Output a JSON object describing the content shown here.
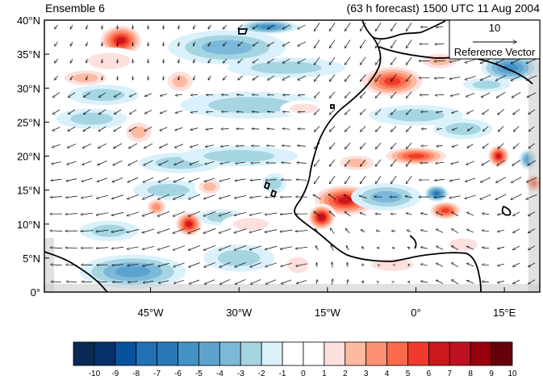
{
  "header": {
    "left_title": "Ensemble 6",
    "right_title": "(63 h forecast) 1500 UTC 11 Aug 2004"
  },
  "map": {
    "lon_range": [
      -63,
      21
    ],
    "lat_range": [
      0,
      40
    ],
    "lat_ticks": [
      {
        "value": 0,
        "label": "0°"
      },
      {
        "value": 5,
        "label": "5°N"
      },
      {
        "value": 10,
        "label": "10°N"
      },
      {
        "value": 15,
        "label": "15°N"
      },
      {
        "value": 20,
        "label": "20°N"
      },
      {
        "value": 25,
        "label": "25°N"
      },
      {
        "value": 30,
        "label": "30°N"
      },
      {
        "value": 35,
        "label": "35°N"
      },
      {
        "value": 40,
        "label": "40°N"
      }
    ],
    "lon_ticks": [
      {
        "value": -45,
        "label": "45°W"
      },
      {
        "value": -30,
        "label": "30°W"
      },
      {
        "value": -15,
        "label": "15°W"
      },
      {
        "value": 0,
        "label": "0°"
      },
      {
        "value": 15,
        "label": "15°E"
      }
    ],
    "anomaly_blobs": [
      {
        "lon": -50,
        "lat": 37,
        "rx": 4,
        "ry": 2.5,
        "level": 7
      },
      {
        "lon": -52,
        "lat": 34,
        "rx": 6,
        "ry": 2,
        "level": 2
      },
      {
        "lon": -56,
        "lat": 31.5,
        "rx": 5,
        "ry": 1.5,
        "level": 3
      },
      {
        "lon": -40,
        "lat": 31,
        "rx": 3,
        "ry": 2,
        "level": 3
      },
      {
        "lon": -32,
        "lat": 36,
        "rx": 10,
        "ry": 2.5,
        "level": -3
      },
      {
        "lon": -25,
        "lat": 39,
        "rx": 5,
        "ry": 1,
        "level": -5
      },
      {
        "lon": -22,
        "lat": 33,
        "rx": 10,
        "ry": 1.5,
        "level": -2
      },
      {
        "lon": -28,
        "lat": 27.5,
        "rx": 12,
        "ry": 2,
        "level": -2
      },
      {
        "lon": -53,
        "lat": 29,
        "rx": 6,
        "ry": 1.5,
        "level": -2
      },
      {
        "lon": -55,
        "lat": 25.5,
        "rx": 6,
        "ry": 1.5,
        "level": -2
      },
      {
        "lon": -47,
        "lat": 23.5,
        "rx": 3,
        "ry": 2,
        "level": 3
      },
      {
        "lon": -40,
        "lat": 19,
        "rx": 7,
        "ry": 1.5,
        "level": -2
      },
      {
        "lon": -30,
        "lat": 20,
        "rx": 10,
        "ry": 1.5,
        "level": -2
      },
      {
        "lon": -42,
        "lat": 15,
        "rx": 6,
        "ry": 1.5,
        "level": -2
      },
      {
        "lon": -35,
        "lat": 15.5,
        "rx": 2.5,
        "ry": 1.5,
        "level": 3
      },
      {
        "lon": -44,
        "lat": 12.5,
        "rx": 2,
        "ry": 1.5,
        "level": 4
      },
      {
        "lon": -38.5,
        "lat": 10,
        "rx": 2.5,
        "ry": 2,
        "level": 7
      },
      {
        "lon": -33,
        "lat": 11,
        "rx": 4,
        "ry": 1.2,
        "level": -2
      },
      {
        "lon": -52,
        "lat": 9,
        "rx": 5,
        "ry": 1.5,
        "level": -2
      },
      {
        "lon": -28,
        "lat": 10,
        "rx": 5,
        "ry": 1.5,
        "level": 2
      },
      {
        "lon": -48,
        "lat": 3,
        "rx": 9,
        "ry": 2.5,
        "level": -4
      },
      {
        "lon": -30,
        "lat": 5,
        "rx": 6,
        "ry": 2,
        "level": -2
      },
      {
        "lon": -20,
        "lat": 4,
        "rx": 3,
        "ry": 2,
        "level": 2
      },
      {
        "lon": -12,
        "lat": 13.5,
        "rx": 6,
        "ry": 2.5,
        "level": 7
      },
      {
        "lon": -16,
        "lat": 11,
        "rx": 2.5,
        "ry": 2,
        "level": 8
      },
      {
        "lon": -5,
        "lat": 14,
        "rx": 6,
        "ry": 2,
        "level": -3
      },
      {
        "lon": 0,
        "lat": 20,
        "rx": 6,
        "ry": 1.5,
        "level": 6
      },
      {
        "lon": -10,
        "lat": 19,
        "rx": 4,
        "ry": 1.5,
        "level": 3
      },
      {
        "lon": 5,
        "lat": 12,
        "rx": 3,
        "ry": 1.5,
        "level": 6
      },
      {
        "lon": 3.5,
        "lat": 14.5,
        "rx": 2,
        "ry": 1.2,
        "level": -6
      },
      {
        "lon": 14,
        "lat": 20,
        "rx": 2,
        "ry": 1.8,
        "level": 7
      },
      {
        "lon": 19,
        "lat": 19.5,
        "rx": 1.5,
        "ry": 1.5,
        "level": -4
      },
      {
        "lon": 20,
        "lat": 16,
        "rx": 1.5,
        "ry": 1.5,
        "level": 6
      },
      {
        "lon": -4,
        "lat": 31,
        "rx": 6,
        "ry": 2.5,
        "level": 6
      },
      {
        "lon": 4,
        "lat": 34,
        "rx": 4,
        "ry": 1.5,
        "level": 3
      },
      {
        "lon": 16,
        "lat": 33,
        "rx": 5,
        "ry": 2,
        "level": -5
      },
      {
        "lon": 12,
        "lat": 30.5,
        "rx": 4,
        "ry": 1,
        "level": -2
      },
      {
        "lon": 0,
        "lat": 26,
        "rx": 8,
        "ry": 1.5,
        "level": -2
      },
      {
        "lon": 8,
        "lat": 24,
        "rx": 5,
        "ry": 1.5,
        "level": -2
      },
      {
        "lon": -4,
        "lat": 4,
        "rx": 6,
        "ry": 1.5,
        "level": 2
      },
      {
        "lon": 8,
        "lat": 7,
        "rx": 4,
        "ry": 1.5,
        "level": 2
      },
      {
        "lon": -24,
        "lat": 16,
        "rx": 2,
        "ry": 1.5,
        "level": -2
      },
      {
        "lon": -19,
        "lat": 27,
        "rx": 4,
        "ry": 1.2,
        "level": 2
      }
    ],
    "reference_vector": {
      "value": "10",
      "label": "Reference Vector"
    }
  },
  "colorbar": {
    "ticks": [
      "-10",
      "-9",
      "-8",
      "-7",
      "-6",
      "-5",
      "-4",
      "-3",
      "-2",
      "-1",
      "0",
      "1",
      "2",
      "3",
      "4",
      "5",
      "6",
      "7",
      "8",
      "9",
      "10"
    ],
    "colors": [
      "#0a2a55",
      "#08306b",
      "#08519c",
      "#2171b5",
      "#2878b8",
      "#4292c6",
      "#5ea3cf",
      "#7cb8d9",
      "#a6d5e2",
      "#daf1fb",
      "#ffffff",
      "#ffffff",
      "#fde0dd",
      "#fcbba1",
      "#fc9272",
      "#fb6a4a",
      "#ef3b2c",
      "#cb181d",
      "#bd1020",
      "#99000d",
      "#67000d"
    ]
  }
}
